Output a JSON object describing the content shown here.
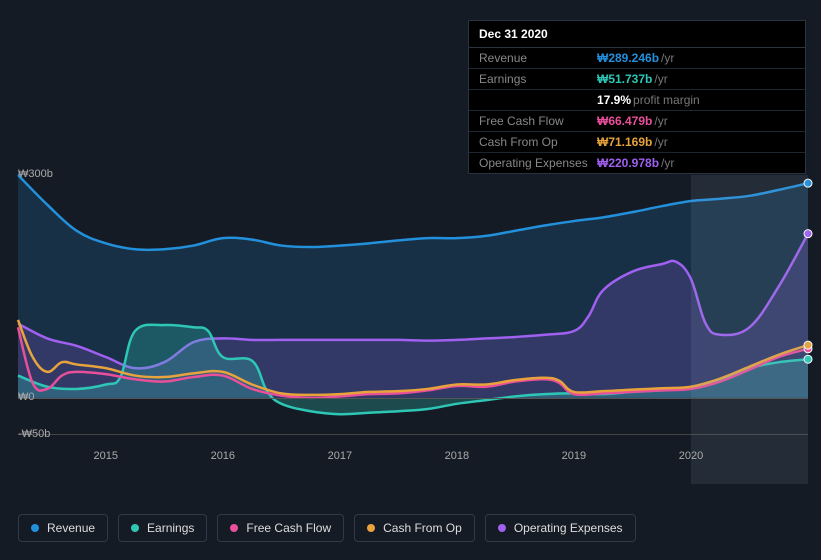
{
  "tooltip": {
    "date": "Dec 31 2020",
    "rows": [
      {
        "key": "revenue",
        "label": "Revenue",
        "value": "₩289.246b",
        "unit": "/yr",
        "color": "#2390dc"
      },
      {
        "key": "earnings",
        "label": "Earnings",
        "value": "₩51.737b",
        "unit": "/yr",
        "color": "#2ec7b6"
      },
      {
        "key": "margin",
        "sub": true,
        "value": "17.9%",
        "unit": "profit margin",
        "color": "#ffffff"
      },
      {
        "key": "fcf",
        "label": "Free Cash Flow",
        "value": "₩66.479b",
        "unit": "/yr",
        "color": "#e94f9a"
      },
      {
        "key": "cfo",
        "label": "Cash From Op",
        "value": "₩71.169b",
        "unit": "/yr",
        "color": "#e8a33d"
      },
      {
        "key": "opex",
        "label": "Operating Expenses",
        "value": "₩220.978b",
        "unit": "/yr",
        "color": "#a060f0"
      }
    ]
  },
  "chart": {
    "type": "line",
    "background_color": "#151b24",
    "grid_color": "#444",
    "ylim": [
      -50,
      300
    ],
    "yticks": [
      {
        "v": 300,
        "label": "₩300b"
      },
      {
        "v": 0,
        "label": "₩0"
      },
      {
        "v": -50,
        "label": "-₩50b"
      }
    ],
    "x_start": 2014.25,
    "x_end": 2021.0,
    "xticks": [
      2015,
      2016,
      2017,
      2018,
      2019,
      2020
    ],
    "highlight_band": {
      "from": 2020.0,
      "to": 2021.0
    },
    "series": [
      {
        "key": "revenue",
        "name": "Revenue",
        "color": "#2390dc",
        "fill_opacity": 0.18,
        "points": [
          [
            2014.25,
            300
          ],
          [
            2014.5,
            260
          ],
          [
            2014.75,
            225
          ],
          [
            2015.0,
            208
          ],
          [
            2015.25,
            200
          ],
          [
            2015.5,
            200
          ],
          [
            2015.75,
            205
          ],
          [
            2016.0,
            215
          ],
          [
            2016.25,
            213
          ],
          [
            2016.5,
            205
          ],
          [
            2016.75,
            203
          ],
          [
            2017.0,
            205
          ],
          [
            2017.25,
            208
          ],
          [
            2017.5,
            212
          ],
          [
            2017.75,
            215
          ],
          [
            2018.0,
            215
          ],
          [
            2018.25,
            218
          ],
          [
            2018.5,
            225
          ],
          [
            2018.75,
            232
          ],
          [
            2019.0,
            238
          ],
          [
            2019.25,
            243
          ],
          [
            2019.5,
            250
          ],
          [
            2019.75,
            258
          ],
          [
            2020.0,
            265
          ],
          [
            2020.25,
            268
          ],
          [
            2020.5,
            272
          ],
          [
            2020.75,
            280
          ],
          [
            2021.0,
            289
          ]
        ]
      },
      {
        "key": "opex",
        "name": "Operating Expenses",
        "color": "#a060f0",
        "fill_opacity": 0.2,
        "points": [
          [
            2014.25,
            100
          ],
          [
            2014.5,
            80
          ],
          [
            2014.75,
            70
          ],
          [
            2015.0,
            55
          ],
          [
            2015.25,
            40
          ],
          [
            2015.5,
            48
          ],
          [
            2015.75,
            75
          ],
          [
            2016.0,
            80
          ],
          [
            2016.25,
            78
          ],
          [
            2016.5,
            78
          ],
          [
            2016.75,
            78
          ],
          [
            2017.0,
            78
          ],
          [
            2017.25,
            78
          ],
          [
            2017.5,
            78
          ],
          [
            2017.75,
            77
          ],
          [
            2018.0,
            78
          ],
          [
            2018.25,
            80
          ],
          [
            2018.5,
            82
          ],
          [
            2018.75,
            85
          ],
          [
            2019.0,
            90
          ],
          [
            2019.125,
            110
          ],
          [
            2019.25,
            145
          ],
          [
            2019.5,
            170
          ],
          [
            2019.75,
            180
          ],
          [
            2019.875,
            183
          ],
          [
            2020.0,
            160
          ],
          [
            2020.125,
            100
          ],
          [
            2020.25,
            85
          ],
          [
            2020.5,
            95
          ],
          [
            2020.75,
            150
          ],
          [
            2021.0,
            221
          ]
        ]
      },
      {
        "key": "earnings",
        "name": "Earnings",
        "color": "#2ec7b6",
        "fill_opacity": 0.28,
        "points": [
          [
            2014.25,
            30
          ],
          [
            2014.5,
            15
          ],
          [
            2014.75,
            12
          ],
          [
            2015.0,
            18
          ],
          [
            2015.125,
            28
          ],
          [
            2015.25,
            90
          ],
          [
            2015.5,
            98
          ],
          [
            2015.75,
            95
          ],
          [
            2015.875,
            90
          ],
          [
            2016.0,
            55
          ],
          [
            2016.25,
            50
          ],
          [
            2016.375,
            10
          ],
          [
            2016.5,
            -8
          ],
          [
            2016.75,
            -18
          ],
          [
            2017.0,
            -22
          ],
          [
            2017.25,
            -20
          ],
          [
            2017.5,
            -18
          ],
          [
            2017.75,
            -15
          ],
          [
            2018.0,
            -8
          ],
          [
            2018.25,
            -3
          ],
          [
            2018.5,
            2
          ],
          [
            2018.75,
            5
          ],
          [
            2019.0,
            6
          ],
          [
            2019.25,
            5
          ],
          [
            2019.5,
            8
          ],
          [
            2019.75,
            10
          ],
          [
            2020.0,
            14
          ],
          [
            2020.25,
            25
          ],
          [
            2020.5,
            40
          ],
          [
            2020.75,
            48
          ],
          [
            2021.0,
            52
          ]
        ]
      },
      {
        "key": "fcf",
        "name": "Free Cash Flow",
        "color": "#e94f9a",
        "fill_opacity": 0,
        "points": [
          [
            2014.25,
            95
          ],
          [
            2014.375,
            20
          ],
          [
            2014.5,
            12
          ],
          [
            2014.625,
            30
          ],
          [
            2014.75,
            35
          ],
          [
            2015.0,
            32
          ],
          [
            2015.25,
            25
          ],
          [
            2015.5,
            22
          ],
          [
            2015.75,
            28
          ],
          [
            2016.0,
            30
          ],
          [
            2016.25,
            12
          ],
          [
            2016.5,
            3
          ],
          [
            2016.75,
            0
          ],
          [
            2017.0,
            2
          ],
          [
            2017.25,
            5
          ],
          [
            2017.5,
            6
          ],
          [
            2017.75,
            10
          ],
          [
            2018.0,
            16
          ],
          [
            2018.25,
            15
          ],
          [
            2018.5,
            22
          ],
          [
            2018.75,
            25
          ],
          [
            2018.875,
            20
          ],
          [
            2019.0,
            5
          ],
          [
            2019.25,
            6
          ],
          [
            2019.5,
            8
          ],
          [
            2019.75,
            10
          ],
          [
            2020.0,
            12
          ],
          [
            2020.25,
            22
          ],
          [
            2020.5,
            38
          ],
          [
            2020.75,
            55
          ],
          [
            2021.0,
            66
          ]
        ]
      },
      {
        "key": "cfo",
        "name": "Cash From Op",
        "color": "#e8a33d",
        "fill_opacity": 0,
        "points": [
          [
            2014.25,
            105
          ],
          [
            2014.375,
            55
          ],
          [
            2014.5,
            35
          ],
          [
            2014.625,
            48
          ],
          [
            2014.75,
            45
          ],
          [
            2015.0,
            40
          ],
          [
            2015.25,
            30
          ],
          [
            2015.5,
            28
          ],
          [
            2015.75,
            33
          ],
          [
            2016.0,
            35
          ],
          [
            2016.25,
            18
          ],
          [
            2016.5,
            6
          ],
          [
            2016.75,
            4
          ],
          [
            2017.0,
            5
          ],
          [
            2017.25,
            8
          ],
          [
            2017.5,
            9
          ],
          [
            2017.75,
            12
          ],
          [
            2018.0,
            18
          ],
          [
            2018.25,
            18
          ],
          [
            2018.5,
            24
          ],
          [
            2018.75,
            27
          ],
          [
            2018.875,
            23
          ],
          [
            2019.0,
            8
          ],
          [
            2019.25,
            9
          ],
          [
            2019.5,
            11
          ],
          [
            2019.75,
            13
          ],
          [
            2020.0,
            15
          ],
          [
            2020.25,
            26
          ],
          [
            2020.5,
            42
          ],
          [
            2020.75,
            58
          ],
          [
            2021.0,
            71
          ]
        ]
      }
    ]
  },
  "legend": [
    {
      "key": "revenue",
      "label": "Revenue",
      "color": "#2390dc"
    },
    {
      "key": "earnings",
      "label": "Earnings",
      "color": "#2ec7b6"
    },
    {
      "key": "fcf",
      "label": "Free Cash Flow",
      "color": "#e94f9a"
    },
    {
      "key": "cfo",
      "label": "Cash From Op",
      "color": "#e8a33d"
    },
    {
      "key": "opex",
      "label": "Operating Expenses",
      "color": "#a060f0"
    }
  ]
}
